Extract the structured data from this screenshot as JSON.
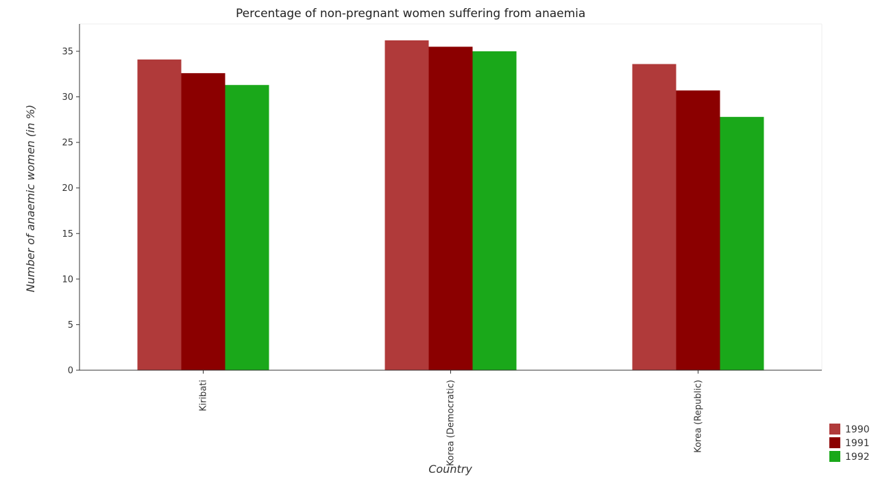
{
  "chart_data": {
    "type": "bar",
    "title": "Percentage of non-pregnant women suffering from anaemia",
    "xlabel": "Country",
    "ylabel": "Number of anaemic women (in %)",
    "categories": [
      "Kiribati",
      "Korea (Democratic)",
      "Korea (Republic)"
    ],
    "series": [
      {
        "name": "1990",
        "color": "#b03a3a",
        "values": [
          34.1,
          36.2,
          33.6
        ]
      },
      {
        "name": "1991",
        "color": "#8b0000",
        "values": [
          32.6,
          35.5,
          30.7
        ]
      },
      {
        "name": "1992",
        "color": "#1aa81a",
        "values": [
          31.3,
          35.0,
          27.8
        ]
      }
    ],
    "ylim": [
      0,
      38
    ],
    "yticks": [
      0,
      5,
      10,
      15,
      20,
      25,
      30,
      35
    ],
    "legend_position": "bottom-right",
    "grid": false
  }
}
